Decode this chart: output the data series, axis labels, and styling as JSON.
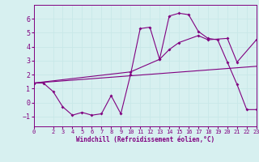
{
  "background_color": "#d7f0f0",
  "grid_color": "#b0d8d8",
  "line_color": "#800080",
  "x_label": "Windchill (Refroidissement éolien,°C)",
  "x_ticks": [
    0,
    2,
    3,
    4,
    5,
    6,
    7,
    8,
    9,
    10,
    11,
    12,
    13,
    14,
    15,
    16,
    17,
    18,
    19,
    20,
    21,
    22,
    23
  ],
  "ylim": [
    -1.7,
    7.0
  ],
  "xlim": [
    0,
    23
  ],
  "y_ticks": [
    -1,
    0,
    1,
    2,
    3,
    4,
    5,
    6
  ],
  "series1_x": [
    0,
    1,
    2,
    3,
    4,
    5,
    6,
    7,
    8,
    9,
    10,
    11,
    12,
    13,
    14,
    15,
    16,
    17,
    18,
    19,
    20,
    21,
    22,
    23
  ],
  "series1_y": [
    1.4,
    1.4,
    0.8,
    -0.3,
    -0.9,
    -0.7,
    -0.9,
    -0.8,
    0.5,
    -0.8,
    2.0,
    5.3,
    5.4,
    3.1,
    6.2,
    6.4,
    6.3,
    5.1,
    4.6,
    4.5,
    2.9,
    1.3,
    -0.5,
    -0.5
  ],
  "series2_x": [
    0,
    10,
    13,
    14,
    15,
    17,
    18,
    20,
    21,
    23
  ],
  "series2_y": [
    1.4,
    2.2,
    3.1,
    3.8,
    4.3,
    4.8,
    4.5,
    4.6,
    2.9,
    4.5
  ],
  "series3_x": [
    0,
    23
  ],
  "series3_y": [
    1.4,
    2.6
  ]
}
